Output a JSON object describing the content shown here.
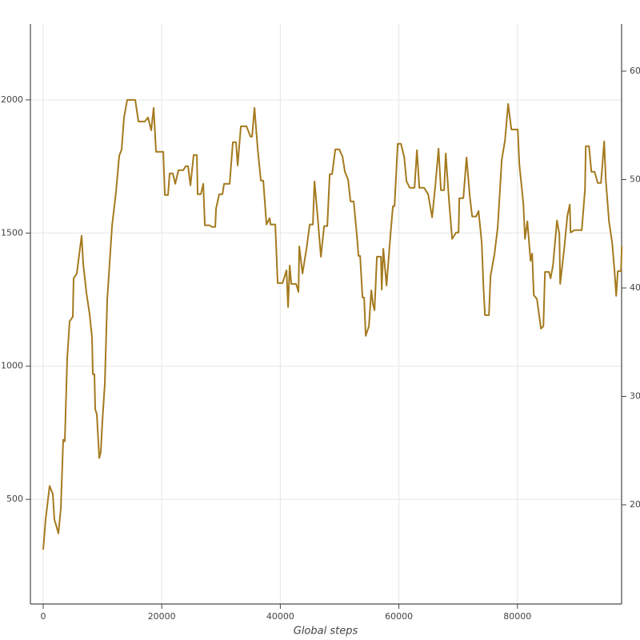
{
  "chart_data": {
    "type": "line",
    "x_label": "Global steps",
    "x": [
      0,
      405,
      1080,
      1620,
      1890,
      2295,
      2565,
      2970,
      3375,
      3645,
      4050,
      4455,
      4995,
      5130,
      5670,
      6480,
      6750,
      7290,
      7830,
      8235,
      8370,
      8640,
      8775,
      9045,
      9450,
      9720,
      9990,
      10395,
      10800,
      11610,
      12285,
      12825,
      13230,
      13635,
      14175,
      15525,
      16065,
      17145,
      17685,
      18225,
      18630,
      19035,
      20250,
      20520,
      21060,
      21330,
      21870,
      22275,
      22815,
      23625,
      24030,
      24435,
      24840,
      25380,
      25920,
      26055,
      26595,
      27000,
      27270,
      28080,
      28485,
      29025,
      29160,
      29700,
      30240,
      30510,
      31455,
      31995,
      32535,
      32805,
      33345,
      34290,
      34965,
      35235,
      35640,
      36180,
      36720,
      37125,
      37665,
      38205,
      38340,
      39150,
      39555,
      40365,
      41040,
      41310,
      41580,
      41850,
      42660,
      43065,
      43200,
      43740,
      44415,
      44955,
      45495,
      45765,
      46305,
      46845,
      47385,
      47925,
      48330,
      48735,
      49275,
      49950,
      50490,
      50895,
      51435,
      51840,
      52380,
      52920,
      53190,
      53460,
      53865,
      54135,
      54405,
      54945,
      55350,
      55620,
      55890,
      56295,
      56970,
      57105,
      57375,
      57915,
      58590,
      58995,
      59265,
      59805,
      60345,
      60885,
      61290,
      61830,
      62640,
      63045,
      63450,
      64260,
      64935,
      65610,
      66150,
      66690,
      67095,
      67635,
      67905,
      68445,
      68985,
      69660,
      70065,
      70200,
      70875,
      71415,
      71955,
      72360,
      73035,
      73440,
      73980,
      74250,
      74520,
      75195,
      75465,
      76140,
      76680,
      77355,
      77895,
      78435,
      78975,
      80055,
      80325,
      81000,
      81270,
      81675,
      82215,
      82485,
      82755,
      83295,
      83970,
      84375,
      84645,
      85320,
      85590,
      85995,
      86670,
      87075,
      87210,
      87885,
      88425,
      88830,
      88965,
      89640,
      90855,
      91395,
      91530,
      92070,
      92475,
      93015,
      93555,
      94095,
      94635,
      94905,
      95445,
      95985,
      96390,
      96660,
      96930,
      97470,
      97605
    ],
    "series": [
      {
        "color": "#a47a1e",
        "values": [
          311,
          424,
          550,
          520,
          424,
          394,
          372,
          465,
          724,
          718,
          1030,
          1168,
          1186,
          1330,
          1348,
          1490,
          1384,
          1276,
          1195,
          1108,
          970,
          970,
          838,
          820,
          655,
          679,
          796,
          934,
          1249,
          1526,
          1655,
          1790,
          1814,
          1934,
          2000,
          2000,
          1919,
          1919,
          1934,
          1886,
          1970,
          1805,
          1805,
          1643,
          1643,
          1724,
          1724,
          1685,
          1736,
          1736,
          1751,
          1751,
          1679,
          1793,
          1793,
          1646,
          1646,
          1685,
          1529,
          1529,
          1523,
          1523,
          1592,
          1646,
          1646,
          1685,
          1685,
          1841,
          1841,
          1754,
          1901,
          1901,
          1862,
          1862,
          1970,
          1817,
          1697,
          1697,
          1532,
          1556,
          1532,
          1532,
          1312,
          1312,
          1360,
          1222,
          1378,
          1309,
          1309,
          1279,
          1450,
          1348,
          1441,
          1532,
          1532,
          1694,
          1559,
          1411,
          1526,
          1526,
          1721,
          1721,
          1814,
          1814,
          1787,
          1730,
          1700,
          1619,
          1619,
          1490,
          1414,
          1414,
          1258,
          1258,
          1114,
          1150,
          1285,
          1234,
          1210,
          1411,
          1411,
          1288,
          1441,
          1303,
          1496,
          1601,
          1601,
          1835,
          1835,
          1787,
          1694,
          1670,
          1670,
          1811,
          1670,
          1670,
          1646,
          1559,
          1679,
          1817,
          1661,
          1661,
          1799,
          1625,
          1478,
          1502,
          1502,
          1631,
          1631,
          1784,
          1640,
          1562,
          1562,
          1583,
          1463,
          1306,
          1192,
          1192,
          1339,
          1423,
          1523,
          1775,
          1847,
          1985,
          1889,
          1889,
          1757,
          1610,
          1478,
          1544,
          1396,
          1423,
          1267,
          1252,
          1141,
          1150,
          1354,
          1354,
          1330,
          1378,
          1547,
          1496,
          1309,
          1441,
          1565,
          1607,
          1502,
          1511,
          1511,
          1664,
          1826,
          1826,
          1730,
          1730,
          1688,
          1688,
          1844,
          1700,
          1544,
          1463,
          1354,
          1264,
          1357,
          1357,
          1450
        ]
      }
    ],
    "xlim": [
      -2159,
      97571
    ],
    "xticks": [
      0,
      20000,
      40000,
      60000,
      80000
    ],
    "ylim": [
      107,
      2285
    ],
    "yticks": [
      500,
      1000,
      1500,
      2000
    ],
    "y2lim": [
      10.85,
      64.35
    ],
    "y2ticks": [
      20,
      30,
      40,
      50,
      60
    ],
    "grid": true
  }
}
